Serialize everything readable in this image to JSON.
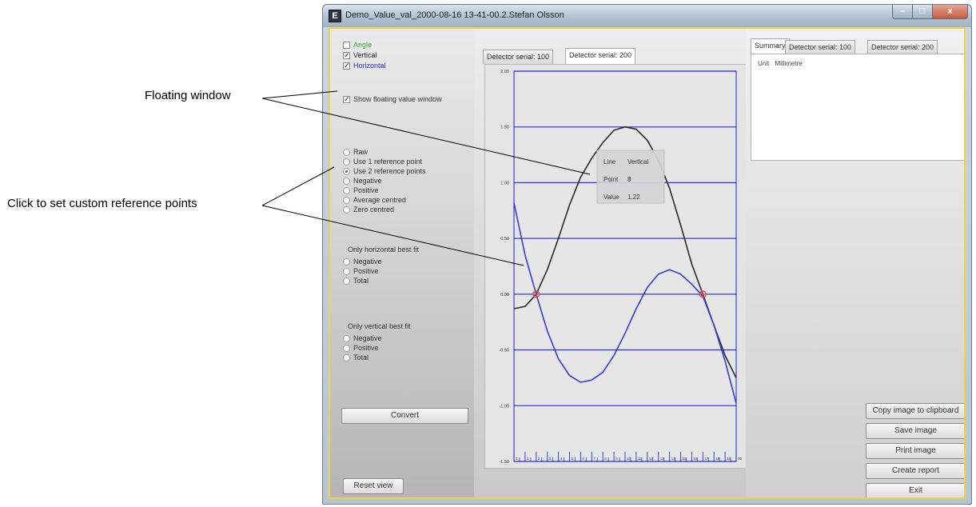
{
  "annotations": {
    "floating_window": "Floating window",
    "reference_points": "Click to set custom reference points"
  },
  "window": {
    "title": "Demo_Value_val_2000-08-16 13-41-00.2.Stefan Olsson",
    "app_icon_letter": "E",
    "controls": {
      "minimize": "–",
      "maximize": "□",
      "close": "x"
    }
  },
  "left_panel": {
    "lines": [
      {
        "label": "Angle",
        "checked": false,
        "color": "#3aa63a"
      },
      {
        "label": "Vertical",
        "checked": true,
        "color": "#222222"
      },
      {
        "label": "Horizontal",
        "checked": true,
        "color": "#2b2bd8"
      }
    ],
    "show_floating": {
      "label": "Show floating value window",
      "checked": true
    },
    "reference_options": [
      "Raw",
      "Use 1 reference point",
      "Use 2 reference points",
      "Negative",
      "Positive",
      "Average centred",
      "Zero centred"
    ],
    "reference_selected": "Use 2 reference points",
    "horizontal_fit": {
      "title": "Only horizontal best fit",
      "options": [
        "Negative",
        "Positive",
        "Total"
      ]
    },
    "vertical_fit": {
      "title": "Only vertical best fit",
      "options": [
        "Negative",
        "Positive",
        "Total"
      ]
    },
    "convert_label": "Convert",
    "reset_label": "Reset view"
  },
  "center_tabs": [
    "Detector serial: 100",
    "Detector serial: 200"
  ],
  "center_tab_active": "Detector serial: 200",
  "right_tabs": [
    "Summary",
    "Detector serial: 100",
    "Detector serial: 200"
  ],
  "right_tab_active": "Summary",
  "summary": {
    "unit_label": "Unit",
    "unit_value": "Millimetre"
  },
  "action_buttons": [
    "Copy image to clipboard",
    "Save image",
    "Print image",
    "Create report",
    "Exit"
  ],
  "floating_window": {
    "line_label": "Line",
    "line_value": "Vertical",
    "point_label": "Point",
    "point_value": "8",
    "value_label": "Value",
    "value_value": "1.22"
  },
  "chart_data": {
    "type": "line",
    "ylim": [
      -1.5,
      2.0
    ],
    "yticks": [
      "2.00",
      "1.50",
      "1.00",
      "0.50",
      "0.00",
      "-0.50",
      "-1.00",
      "-1.50"
    ],
    "ytick_values": [
      2.0,
      1.5,
      1.0,
      0.5,
      0.0,
      -0.5,
      -1.0,
      -1.5
    ],
    "xlim": [
      0,
      20
    ],
    "xticks": [
      "0",
      "1",
      "2",
      "3",
      "4",
      "5",
      "6",
      "7",
      "8",
      "9",
      "10",
      "11",
      "12",
      "13",
      "14",
      "15",
      "16",
      "17",
      "18",
      "19",
      "20"
    ],
    "grid": true,
    "series": [
      {
        "name": "Vertical",
        "color": "#2a2a2a",
        "x": [
          0,
          1,
          2,
          3,
          4,
          5,
          6,
          7,
          8,
          9,
          10,
          11,
          12,
          13,
          14,
          15,
          16,
          17,
          18,
          19,
          20
        ],
        "y": [
          -0.13,
          -0.11,
          0.0,
          0.22,
          0.5,
          0.8,
          1.05,
          1.22,
          1.36,
          1.47,
          1.5,
          1.48,
          1.38,
          1.2,
          0.95,
          0.62,
          0.27,
          0.0,
          -0.28,
          -0.55,
          -0.75
        ]
      },
      {
        "name": "Horizontal",
        "color": "#3a3ad8",
        "x": [
          0,
          1,
          2,
          3,
          4,
          5,
          6,
          7,
          8,
          9,
          10,
          11,
          12,
          13,
          14,
          15,
          16,
          17,
          18,
          19,
          20
        ],
        "y": [
          0.82,
          0.35,
          0.0,
          -0.33,
          -0.58,
          -0.73,
          -0.79,
          -0.77,
          -0.7,
          -0.55,
          -0.35,
          -0.13,
          0.06,
          0.18,
          0.22,
          0.18,
          0.09,
          -0.02,
          -0.28,
          -0.6,
          -0.98
        ]
      }
    ],
    "reference_points": [
      {
        "x": 2,
        "y": 0.0
      },
      {
        "x": 17,
        "y": 0.0
      }
    ]
  }
}
